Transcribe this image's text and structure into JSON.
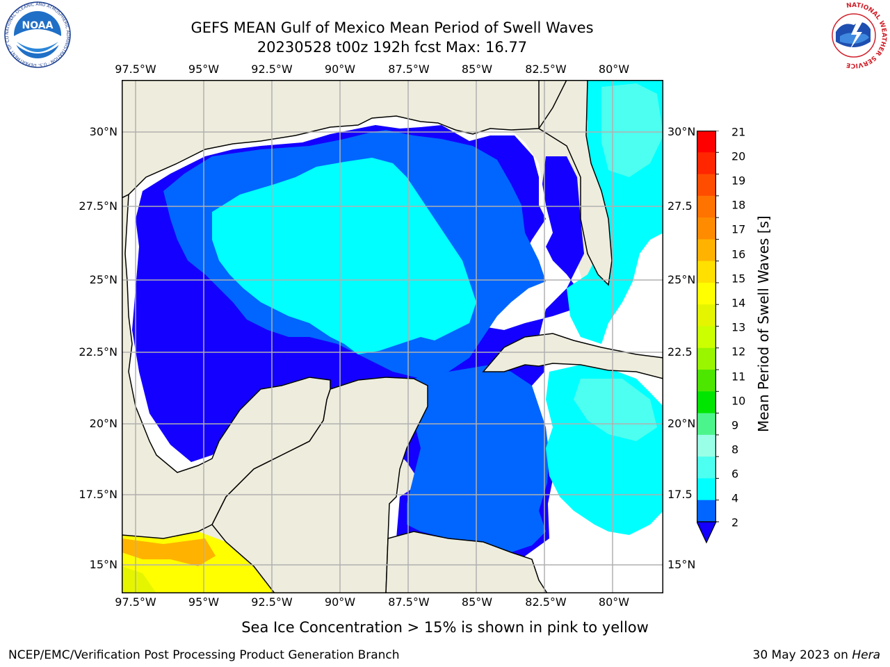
{
  "header": {
    "title_line1": "GEFS MEAN Gulf of Mexico Mean Period of Swell Waves",
    "title_line2": "20230528 t00z 192h fcst   Max: 16.77"
  },
  "map": {
    "lon_labels": [
      "97.5°W",
      "95°W",
      "92.5°W",
      "90°W",
      "87.5°W",
      "85°W",
      "82.5°W",
      "80°W"
    ],
    "lat_labels": [
      "30°N",
      "27.5°N",
      "25°N",
      "22.5°N",
      "20°N",
      "17.5°N",
      "15°N"
    ],
    "right_lat_labels": [
      "30°N",
      "27.5",
      "25°N",
      "22.5",
      "20°N",
      "17.5",
      "15°N"
    ],
    "colors": {
      "land": "#eeecdc",
      "ocean_white": "#ffffff",
      "grid": "#b0b0b0"
    }
  },
  "colorbar": {
    "label": "Mean Period of Swell Waves [s]",
    "ticks": [
      "21",
      "20",
      "19",
      "18",
      "17",
      "16",
      "15",
      "14",
      "13",
      "12",
      "11",
      "10",
      "9",
      "8",
      "6",
      "4",
      "2"
    ],
    "bands": [
      "#ff0000",
      "#ff2600",
      "#ff4d00",
      "#ff7300",
      "#ff8c00",
      "#ffb300",
      "#ffe000",
      "#ffff00",
      "#e5f500",
      "#ccff00",
      "#99f500",
      "#4ce600",
      "#00e600",
      "#4cf58c",
      "#99ffe6",
      "#4dfff0",
      "#00ffff",
      "#0066ff"
    ],
    "extend_color": "#1400ff"
  },
  "logos": {
    "noaa_text": "NOAA",
    "noaa_ring": "NATIONAL OCEANIC AND ATMOSPHERIC ADMINISTRATION · U.S. DEPARTMENT OF COMMERCE",
    "nws_ring": "NATIONAL WEATHER SERVICE"
  },
  "footer": {
    "note": "Sea Ice Concentration > 15% is shown in pink to yellow",
    "left": "NCEP/EMC/Verification Post Processing Product Generation Branch",
    "date": "30 May 2023 on ",
    "machine": "Hera"
  }
}
